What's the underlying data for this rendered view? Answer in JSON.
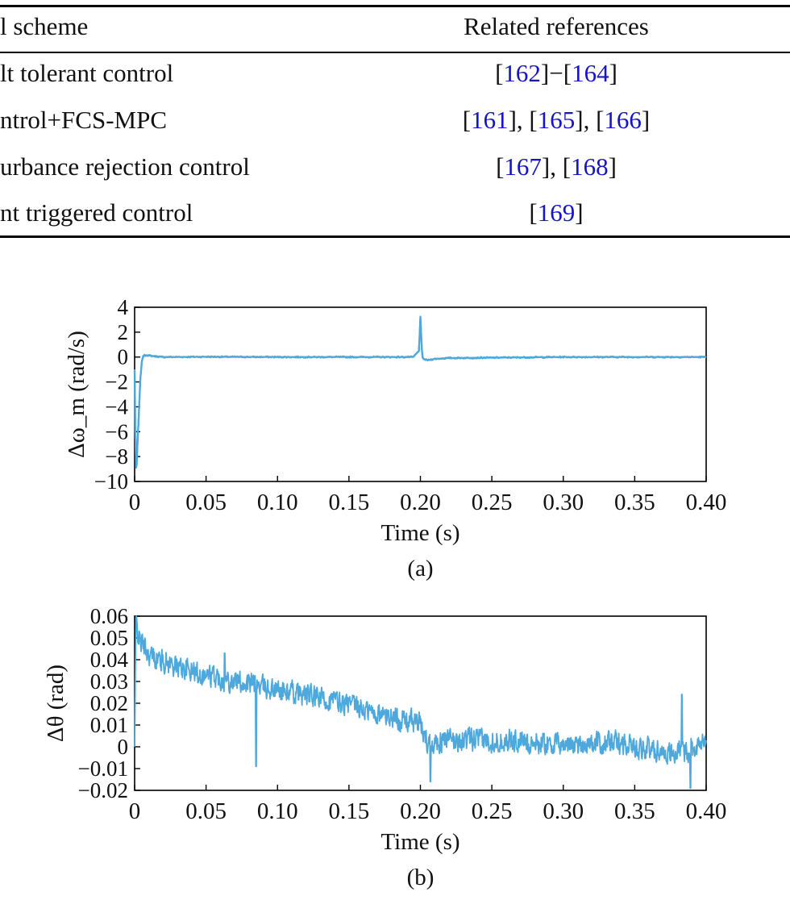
{
  "table": {
    "header": {
      "scheme": "l scheme",
      "refs": "Related references"
    },
    "rows": [
      {
        "scheme": "lt tolerant control",
        "refs": [
          {
            "t": "[",
            "k": "p"
          },
          {
            "t": "162",
            "k": "n"
          },
          {
            "t": "]−[",
            "k": "p"
          },
          {
            "t": "164",
            "k": "n"
          },
          {
            "t": "]",
            "k": "p"
          }
        ]
      },
      {
        "scheme": "ntrol+FCS-MPC",
        "refs": [
          {
            "t": "[",
            "k": "p"
          },
          {
            "t": "161",
            "k": "n"
          },
          {
            "t": "], [",
            "k": "p"
          },
          {
            "t": "165",
            "k": "n"
          },
          {
            "t": "], [",
            "k": "p"
          },
          {
            "t": "166",
            "k": "n"
          },
          {
            "t": "]",
            "k": "p"
          }
        ]
      },
      {
        "scheme": "urbance rejection control",
        "refs": [
          {
            "t": "[",
            "k": "p"
          },
          {
            "t": "167",
            "k": "n"
          },
          {
            "t": "], [",
            "k": "p"
          },
          {
            "t": "168",
            "k": "n"
          },
          {
            "t": "]",
            "k": "p"
          }
        ]
      },
      {
        "scheme": "nt triggered control",
        "refs": [
          {
            "t": "[",
            "k": "p"
          },
          {
            "t": "169",
            "k": "n"
          },
          {
            "t": "]",
            "k": "p"
          }
        ]
      }
    ]
  },
  "chart_data": [
    {
      "type": "line",
      "panel_label": "(a)",
      "xlabel": "Time (s)",
      "ylabel": "Δω_m (rad/s)",
      "xlim": [
        0,
        0.4
      ],
      "ylim": [
        -10,
        4
      ],
      "xticks": [
        "0",
        "0.05",
        "0.10",
        "0.15",
        "0.20",
        "0.25",
        "0.30",
        "0.35",
        "0.40"
      ],
      "yticks": [
        "4",
        "2",
        "0",
        "−2",
        "−4",
        "−6",
        "−8",
        "−10"
      ],
      "color": "#4ea8dc",
      "series": [
        {
          "x": [
            0,
            0.0005,
            0.001,
            0.0015,
            0.002,
            0.003,
            0.004,
            0.005,
            0.006,
            0.008,
            0.01,
            0.015,
            0.02,
            0.05,
            0.1,
            0.15,
            0.195,
            0.199,
            0.2,
            0.2005,
            0.201,
            0.2015,
            0.203,
            0.205,
            0.21,
            0.22,
            0.25,
            0.3,
            0.35,
            0.4
          ],
          "y": [
            -1.0,
            -6.0,
            -8.9,
            -8.6,
            -7.0,
            -4.5,
            -1.8,
            -0.4,
            0.1,
            0.15,
            0.12,
            0.05,
            0.0,
            0.02,
            0.0,
            0.0,
            0.0,
            0.5,
            3.2,
            2.0,
            0.6,
            -0.05,
            -0.2,
            -0.25,
            -0.15,
            -0.08,
            -0.05,
            0.0,
            0.0,
            0.0
          ]
        }
      ]
    },
    {
      "type": "line",
      "panel_label": "(b)",
      "xlabel": "Time (s)",
      "ylabel": "Δθ (rad)",
      "xlim": [
        0,
        0.4
      ],
      "ylim": [
        -0.02,
        0.06
      ],
      "xticks": [
        "0",
        "0.05",
        "0.10",
        "0.15",
        "0.20",
        "0.25",
        "0.30",
        "0.35",
        "0.40"
      ],
      "yticks": [
        "0.06",
        "0.05",
        "0.04",
        "0.03",
        "0.02",
        "0.01",
        "0",
        "−0.01",
        "−0.02"
      ],
      "color": "#4ea8dc",
      "trend": {
        "x": [
          0,
          0.001,
          0.003,
          0.01,
          0.03,
          0.05,
          0.08,
          0.1,
          0.14,
          0.17,
          0.199,
          0.205,
          0.22,
          0.26,
          0.3,
          0.34,
          0.36,
          0.38,
          0.4
        ],
        "y": [
          0.0,
          0.058,
          0.05,
          0.042,
          0.037,
          0.033,
          0.029,
          0.026,
          0.021,
          0.015,
          0.011,
          0.002,
          0.003,
          0.003,
          0.001,
          0.002,
          -0.001,
          -0.003,
          0.002
        ]
      },
      "noise_amplitude": 0.007,
      "spikes": [
        {
          "x": 0.085,
          "y": -0.009
        },
        {
          "x": 0.063,
          "y": 0.043
        },
        {
          "x": 0.207,
          "y": -0.016
        },
        {
          "x": 0.383,
          "y": 0.024
        },
        {
          "x": 0.389,
          "y": -0.019
        }
      ]
    }
  ]
}
